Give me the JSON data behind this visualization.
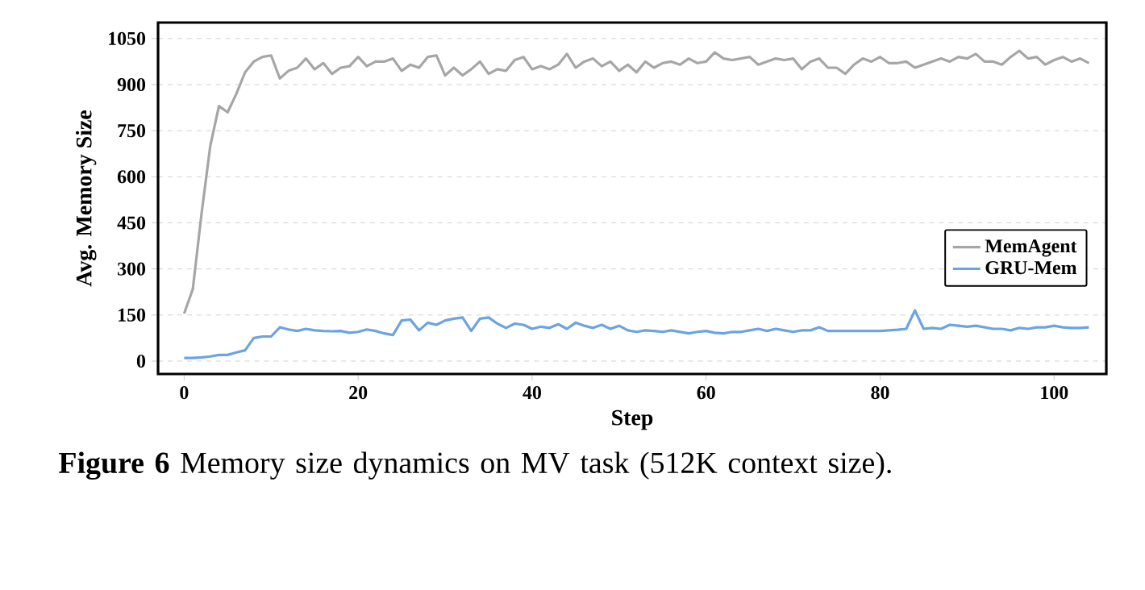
{
  "chart_data": {
    "type": "line",
    "xlabel": "Step",
    "ylabel": "Avg. Memory Size",
    "annotations": [
      "**Figure 6**  Memory size dynamics on MV task (512K context size)."
    ],
    "x": [
      0,
      1,
      2,
      3,
      4,
      5,
      6,
      7,
      8,
      9,
      10,
      11,
      12,
      13,
      14,
      15,
      16,
      17,
      18,
      19,
      20,
      21,
      22,
      23,
      24,
      25,
      26,
      27,
      28,
      29,
      30,
      31,
      32,
      33,
      34,
      35,
      36,
      37,
      38,
      39,
      40,
      41,
      42,
      43,
      44,
      45,
      46,
      47,
      48,
      49,
      50,
      51,
      52,
      53,
      54,
      55,
      56,
      57,
      58,
      59,
      60,
      61,
      62,
      63,
      64,
      65,
      66,
      67,
      68,
      69,
      70,
      71,
      72,
      73,
      74,
      75,
      76,
      77,
      78,
      79,
      80,
      81,
      82,
      83,
      84,
      85,
      86,
      87,
      88,
      89,
      90,
      91,
      92,
      93,
      94,
      95,
      96,
      97,
      98,
      99,
      100,
      101,
      102,
      103,
      104
    ],
    "series": [
      {
        "name": "MemAgent",
        "color": "#a6a6a6",
        "values": [
          155,
          235,
          480,
          700,
          830,
          810,
          870,
          940,
          975,
          990,
          995,
          920,
          945,
          955,
          985,
          950,
          970,
          935,
          955,
          960,
          990,
          960,
          975,
          975,
          985,
          945,
          965,
          955,
          990,
          995,
          930,
          955,
          930,
          950,
          975,
          935,
          950,
          945,
          980,
          990,
          950,
          960,
          950,
          965,
          1000,
          955,
          975,
          985,
          960,
          975,
          945,
          965,
          940,
          975,
          955,
          970,
          975,
          965,
          985,
          970,
          975,
          1005,
          985,
          980,
          985,
          990,
          965,
          975,
          985,
          980,
          985,
          950,
          975,
          985,
          955,
          955,
          935,
          965,
          985,
          975,
          990,
          970,
          970,
          975,
          955,
          965,
          975,
          985,
          975,
          990,
          985,
          1000,
          975,
          975,
          965,
          990,
          1010,
          985,
          990,
          965,
          980,
          990,
          975,
          985,
          970
        ]
      },
      {
        "name": "GRU-Mem",
        "color": "#6ca3e3",
        "values": [
          10,
          10,
          12,
          15,
          20,
          20,
          28,
          35,
          75,
          80,
          80,
          110,
          103,
          98,
          105,
          100,
          98,
          97,
          98,
          92,
          95,
          103,
          98,
          90,
          85,
          132,
          135,
          100,
          125,
          118,
          132,
          138,
          142,
          98,
          138,
          142,
          122,
          108,
          122,
          118,
          105,
          112,
          108,
          120,
          105,
          125,
          115,
          108,
          118,
          105,
          115,
          100,
          95,
          100,
          98,
          95,
          100,
          95,
          90,
          95,
          98,
          92,
          90,
          95,
          95,
          100,
          105,
          98,
          105,
          100,
          95,
          100,
          100,
          110,
          98,
          98,
          98,
          98,
          98,
          98,
          98,
          100,
          102,
          105,
          165,
          105,
          108,
          105,
          118,
          115,
          112,
          115,
          110,
          105,
          105,
          100,
          108,
          105,
          110,
          110,
          115,
          110,
          108,
          108,
          110
        ]
      }
    ],
    "xlim": [
      -3,
      106
    ],
    "ylim": [
      -42,
      1102
    ],
    "xticks": [
      0,
      20,
      40,
      60,
      80,
      100
    ],
    "yticks": [
      0,
      150,
      300,
      450,
      600,
      750,
      900,
      1050
    ],
    "grid": "y",
    "legend": "right",
    "marker": "none",
    "line_style": "solid"
  }
}
